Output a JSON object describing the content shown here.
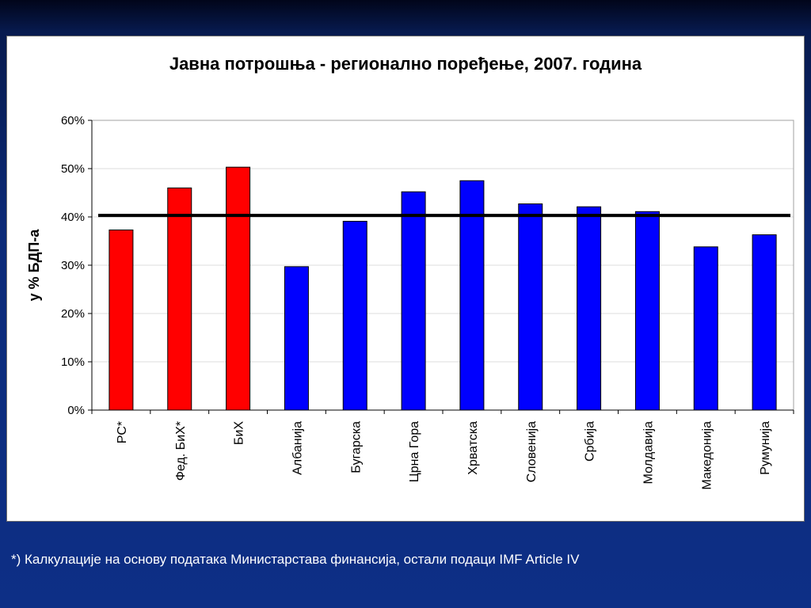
{
  "chart_data": {
    "type": "bar",
    "title": "Јавна потрошња - регионално поређење, 2007. година",
    "ylabel": "у % БДП-а",
    "xlabel": "",
    "categories": [
      "РС*",
      "Фед. БиХ*",
      "БиХ",
      "Албанија",
      "Бугарска",
      "Црна Гора",
      "Хрватска",
      "Словенија",
      "Србија",
      "Молдавија",
      "Македонија",
      "Румунија"
    ],
    "values": [
      37.3,
      46.0,
      50.3,
      29.7,
      39.1,
      45.2,
      47.5,
      42.7,
      42.1,
      41.1,
      33.8,
      36.3
    ],
    "bar_colors": [
      "#ff0000",
      "#ff0000",
      "#ff0000",
      "#0000ff",
      "#0000ff",
      "#0000ff",
      "#0000ff",
      "#0000ff",
      "#0000ff",
      "#0000ff",
      "#0000ff",
      "#0000ff"
    ],
    "reference_line": 40.3,
    "ylim": [
      0,
      60
    ],
    "yticks": [
      0,
      10,
      20,
      30,
      40,
      50,
      60
    ],
    "ytick_labels": [
      "0%",
      "10%",
      "20%",
      "30%",
      "40%",
      "50%",
      "60%"
    ],
    "grid": true,
    "legend": "none"
  },
  "footnote": "*) Калкулације на основу података Министарстава финансија, остали подаци IMF Article IV",
  "colors": {
    "background_top": "#01051a",
    "background_bottom": "#0d2f86",
    "panel": "#ffffff",
    "highlight_bars": "#ff0000",
    "regular_bars": "#0000ff",
    "reference_line": "#000000"
  }
}
